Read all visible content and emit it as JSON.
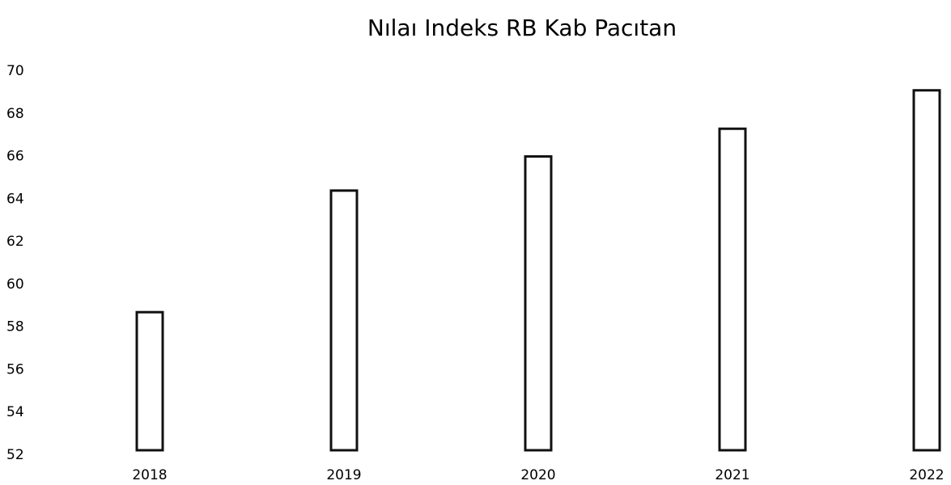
{
  "chart_data": {
    "type": "bar",
    "title": "Nılaı Indeks RB Kab Pacıtan",
    "categories": [
      "2018",
      "2019",
      "2020",
      "2021",
      "2022"
    ],
    "values": [
      58.7,
      64.4,
      66.0,
      67.3,
      69.1
    ],
    "color": "#ffffff",
    "ylim": [
      52,
      70
    ],
    "yticks": [
      52,
      54,
      56,
      58,
      60,
      62,
      64,
      66,
      68,
      70
    ],
    "grid": false
  }
}
